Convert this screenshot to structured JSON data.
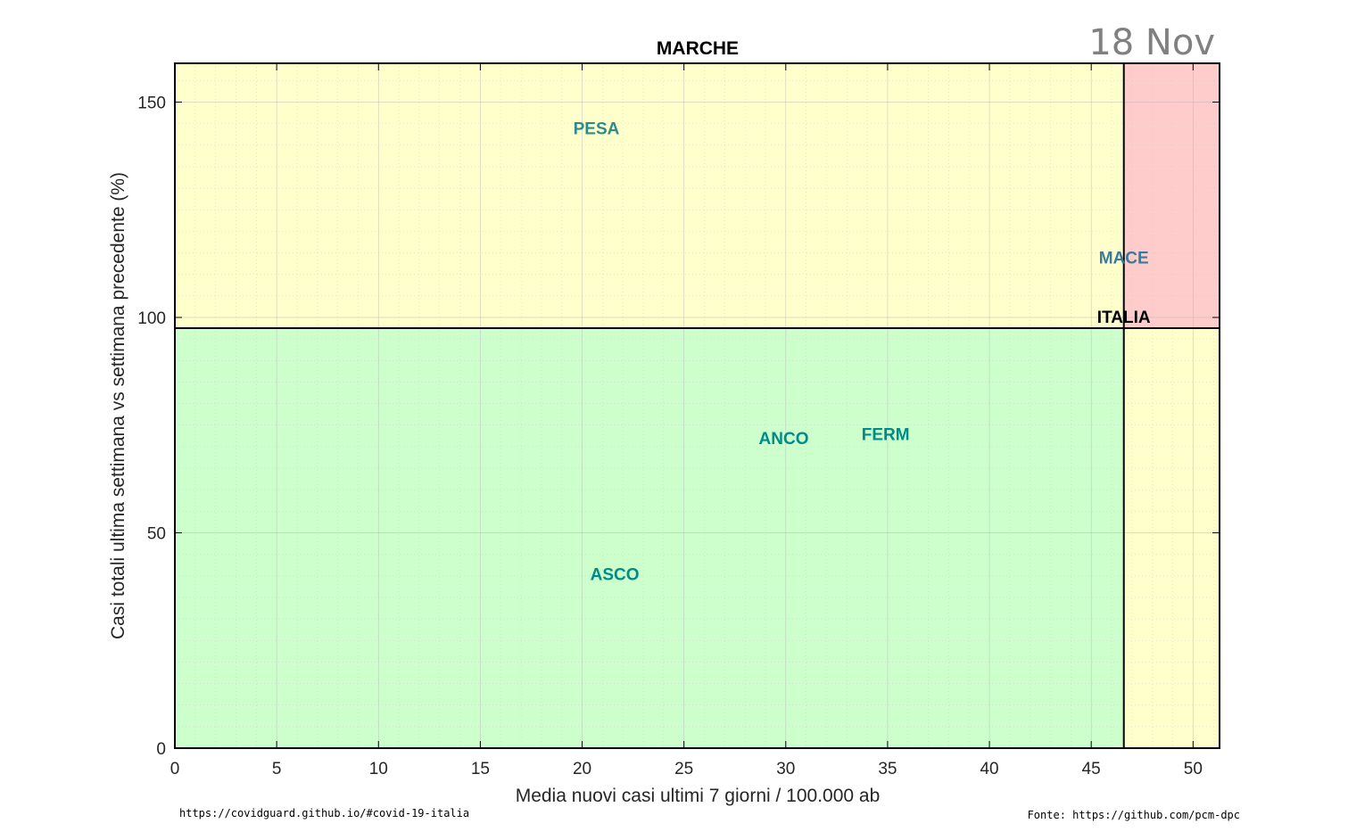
{
  "chart_data": {
    "type": "scatter",
    "title": "MARCHE",
    "date_label": "18 Nov",
    "xlabel": "Media nuovi casi ultimi 7 giorni / 100.000 ab",
    "ylabel": "Casi totali ultima settimana vs settimana precedente (%)",
    "xlim": [
      0,
      51.3
    ],
    "ylim": [
      0,
      159
    ],
    "x_ticks": [
      0,
      5,
      10,
      15,
      20,
      25,
      30,
      35,
      40,
      45,
      50
    ],
    "y_ticks": [
      0,
      50,
      100,
      150
    ],
    "grid": true,
    "minor_grid": true,
    "reference": {
      "label": "ITALIA",
      "x": 46.6,
      "y": 97.5
    },
    "zones": {
      "low_low": "#ccffcc",
      "high_high": "#ffcccc",
      "mixed": "#ffffcc"
    },
    "points": [
      {
        "label": "PESA",
        "x": 20.7,
        "y": 144,
        "color": "#2e8b8b"
      },
      {
        "label": "MACE",
        "x": 46.6,
        "y": 114,
        "color": "#3d7a9a"
      },
      {
        "label": "ANCO",
        "x": 29.9,
        "y": 72,
        "color": "#008b8b"
      },
      {
        "label": "FERM",
        "x": 34.9,
        "y": 73,
        "color": "#008b8b"
      },
      {
        "label": "ASCO",
        "x": 21.6,
        "y": 40.5,
        "color": "#008b8b"
      }
    ]
  },
  "footer": {
    "left": "https://covidguard.github.io/#covid-19-italia",
    "right": "Fonte: https://github.com/pcm-dpc"
  }
}
